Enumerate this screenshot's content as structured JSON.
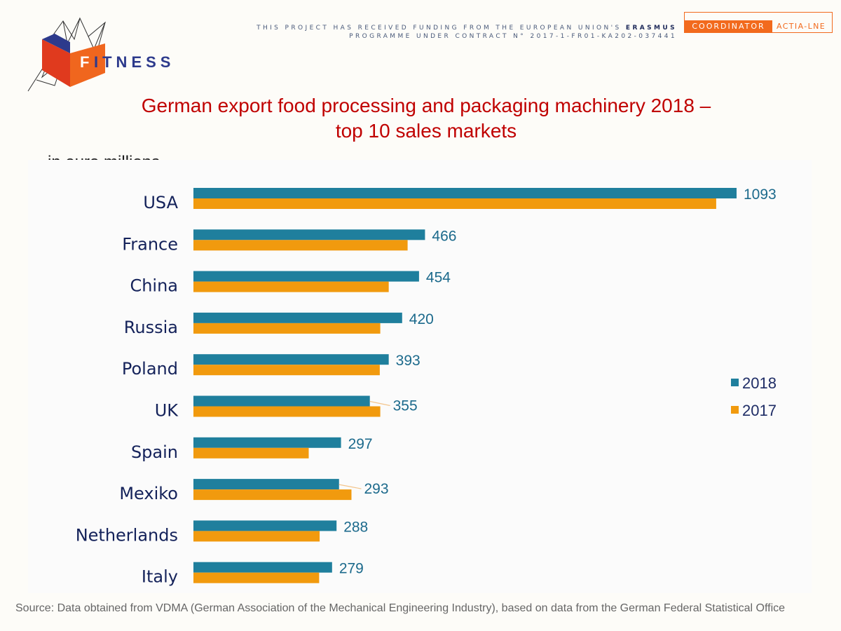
{
  "header": {
    "logo_text": "FITNESS",
    "funding_line1_prefix": "THIS PROJECT HAS RECEIVED FUNDING FROM THE EUROPEAN UNION'S",
    "funding_line1_bold": "ERASMUS",
    "funding_line2": "PROGRAMME UNDER CONTRACT N° 2017-1-FR01-KA202-037441",
    "coordinator_label": "COORDINATOR",
    "coordinator_name": "ACTIA-LNE"
  },
  "colors": {
    "series_2018": "#1f7f9d",
    "series_2017": "#f19a0e",
    "title": "#c00000",
    "accent": "#f26a1d"
  },
  "chart_data": {
    "type": "bar",
    "orientation": "horizontal",
    "title_line1": "German export food processing and packaging machinery 2018 –",
    "title_line2": "top 10 sales markets",
    "unit_label": "in euro millions",
    "categories": [
      "USA",
      "France",
      "China",
      "Russia",
      "Poland",
      "UK",
      "Spain",
      "Mexiko",
      "Netherlands",
      "Italy"
    ],
    "series": [
      {
        "name": "2018",
        "values": [
          1093,
          466,
          454,
          420,
          393,
          355,
          297,
          293,
          288,
          279
        ]
      },
      {
        "name": "2017",
        "values": [
          1052,
          431,
          393,
          376,
          375,
          376,
          232,
          318,
          254,
          253
        ]
      }
    ],
    "data_labels_series": "2018",
    "xlim": [
      0,
      1100
    ],
    "legend_position": "right",
    "grid": false
  },
  "source": "Source: Data obtained from VDMA (German Association of the Mechanical Engineering Industry), based on data from the German Federal Statistical Office"
}
